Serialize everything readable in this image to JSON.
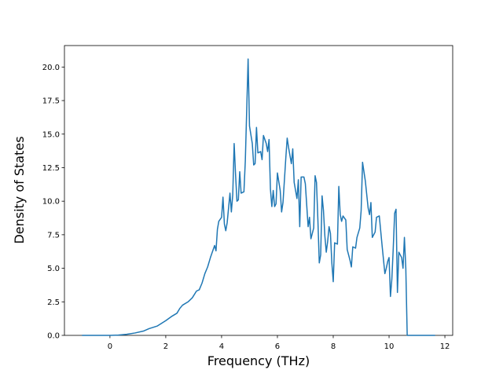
{
  "chart_data": {
    "type": "line",
    "xlabel": "Frequency (THz)",
    "ylabel": "Density of States",
    "color": "#1f77b4",
    "x": [
      -1.0,
      -0.5,
      0,
      0.3,
      0.6,
      0.9,
      1.2,
      1.4,
      1.7,
      2.0,
      2.2,
      2.4,
      2.5,
      2.6,
      2.8,
      2.95,
      3.1,
      3.2,
      3.3,
      3.4,
      3.5,
      3.6,
      3.7,
      3.75,
      3.8,
      3.85,
      3.9,
      4.0,
      4.05,
      4.1,
      4.15,
      4.2,
      4.3,
      4.35,
      4.4,
      4.45,
      4.5,
      4.55,
      4.6,
      4.65,
      4.7,
      4.8,
      4.85,
      4.95,
      5.0,
      5.1,
      5.15,
      5.2,
      5.25,
      5.3,
      5.4,
      5.45,
      5.5,
      5.6,
      5.65,
      5.7,
      5.75,
      5.8,
      5.85,
      5.9,
      5.95,
      6.0,
      6.1,
      6.15,
      6.2,
      6.3,
      6.35,
      6.4,
      6.5,
      6.55,
      6.6,
      6.7,
      6.75,
      6.8,
      6.85,
      6.95,
      7.0,
      7.05,
      7.1,
      7.15,
      7.2,
      7.3,
      7.35,
      7.4,
      7.45,
      7.5,
      7.55,
      7.6,
      7.65,
      7.7,
      7.75,
      7.8,
      7.85,
      7.9,
      7.95,
      8.0,
      8.05,
      8.15,
      8.2,
      8.25,
      8.3,
      8.35,
      8.45,
      8.5,
      8.6,
      8.65,
      8.7,
      8.8,
      8.85,
      8.95,
      9.0,
      9.05,
      9.15,
      9.25,
      9.3,
      9.35,
      9.4,
      9.5,
      9.55,
      9.65,
      9.75,
      9.85,
      9.9,
      9.95,
      10.0,
      10.05,
      10.1,
      10.15,
      10.2,
      10.25,
      10.3,
      10.35,
      10.45,
      10.5,
      10.55,
      10.6,
      10.65,
      11.0,
      11.65
    ],
    "values": [
      0,
      0,
      0,
      0.02,
      0.08,
      0.18,
      0.32,
      0.5,
      0.7,
      1.1,
      1.4,
      1.65,
      2.0,
      2.25,
      2.5,
      2.8,
      3.3,
      3.4,
      3.9,
      4.6,
      5.1,
      5.8,
      6.4,
      6.7,
      6.3,
      7.9,
      8.5,
      8.8,
      10.3,
      8.3,
      7.8,
      8.4,
      10.6,
      9.2,
      10.5,
      14.3,
      12.0,
      10.0,
      10.1,
      12.2,
      10.6,
      10.7,
      13.0,
      20.6,
      15.6,
      14.3,
      12.7,
      12.8,
      15.5,
      13.6,
      13.7,
      13.1,
      14.9,
      14.3,
      13.7,
      14.6,
      10.9,
      9.6,
      10.8,
      9.6,
      9.8,
      12.1,
      10.8,
      9.2,
      9.9,
      13.2,
      14.7,
      14.0,
      12.8,
      13.9,
      11.4,
      10.2,
      11.6,
      8.1,
      11.8,
      11.8,
      11.3,
      9.7,
      8.1,
      8.8,
      7.2,
      8.0,
      11.9,
      11.4,
      8.6,
      5.4,
      6.0,
      10.4,
      9.3,
      7.4,
      6.2,
      7.0,
      8.1,
      7.6,
      5.4,
      4.0,
      6.9,
      6.8,
      11.1,
      9.0,
      8.5,
      8.9,
      8.6,
      6.4,
      5.6,
      5.1,
      6.6,
      6.5,
      7.3,
      8.0,
      9.3,
      12.9,
      11.5,
      9.5,
      9.0,
      9.9,
      7.3,
      7.7,
      8.8,
      8.9,
      6.7,
      4.6,
      5.0,
      5.5,
      5.8,
      2.9,
      4.2,
      6.5,
      9.1,
      9.4,
      3.2,
      6.2,
      5.8,
      5.0,
      7.3,
      5.0,
      0,
      0,
      0
    ],
    "xlim": [
      -1.63,
      12.28
    ],
    "ylim": [
      0,
      21.6
    ],
    "xticks": [
      0,
      2,
      4,
      6,
      8,
      10,
      12
    ],
    "yticks": [
      {
        "value": 0,
        "label": "0.0"
      },
      2.5,
      {
        "value": 5,
        "label": "5.0"
      },
      7.5,
      {
        "value": 10,
        "label": "10.0"
      },
      12.5,
      {
        "value": 15,
        "label": "15.0"
      },
      17.5,
      {
        "value": 20,
        "label": "20.0"
      }
    ]
  }
}
